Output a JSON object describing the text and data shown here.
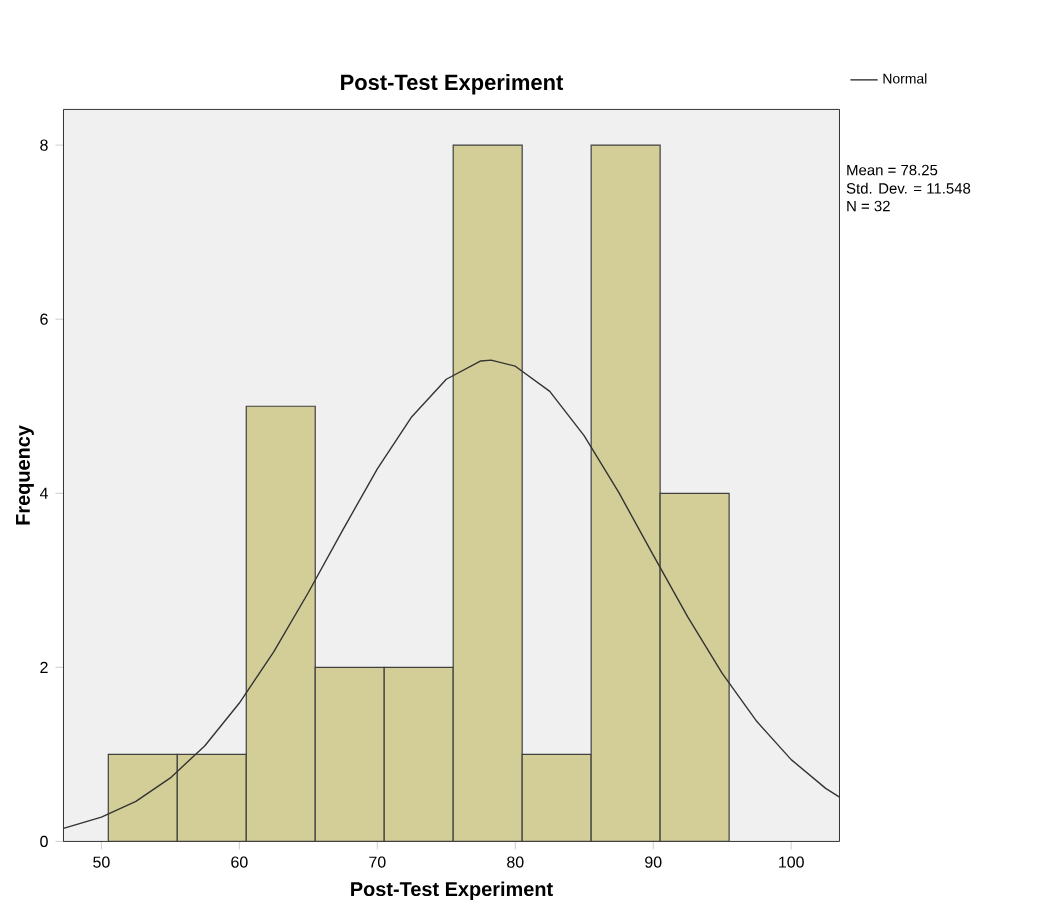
{
  "chart_data": {
    "type": "histogram",
    "title": "Post-Test Experiment",
    "xlabel": "Post-Test Experiment",
    "ylabel": "Frequency",
    "bins": [
      50.5,
      55.5,
      60.5,
      65.5,
      70.5,
      75.5,
      80.5,
      85.5,
      90.5,
      95.5
    ],
    "values": [
      1,
      1,
      5,
      2,
      2,
      8,
      1,
      8,
      4
    ],
    "color": "#d3ce97",
    "series": [
      {
        "type": "line",
        "name": "Normal",
        "color": "#333333",
        "x": [
          47.25,
          50,
          52.5,
          55,
          57.5,
          60,
          62.5,
          65,
          67.5,
          70,
          72.5,
          75,
          77.5,
          78.25,
          80,
          82.5,
          85,
          87.5,
          90,
          92.5,
          95,
          97.5,
          100,
          102.5,
          103.5
        ],
        "values": [
          0.15,
          0.28,
          0.46,
          0.73,
          1.1,
          1.59,
          2.18,
          2.86,
          3.58,
          4.28,
          4.88,
          5.31,
          5.52,
          5.53,
          5.46,
          5.17,
          4.66,
          4.01,
          3.29,
          2.58,
          1.93,
          1.38,
          0.94,
          0.61,
          0.51
        ]
      }
    ],
    "annotations": [
      "Mean = 78.25",
      "Std. Dev. = 11.548",
      "N = 32"
    ],
    "xlim": [
      47.25,
      103.5
    ],
    "ylim": [
      0,
      8.41
    ],
    "xticks": [
      50,
      60,
      70,
      80,
      90,
      100
    ],
    "yticks": [
      0,
      2,
      4,
      6,
      8
    ],
    "grid": false,
    "legend": "top right",
    "marker": "none",
    "line_style": "solid"
  }
}
